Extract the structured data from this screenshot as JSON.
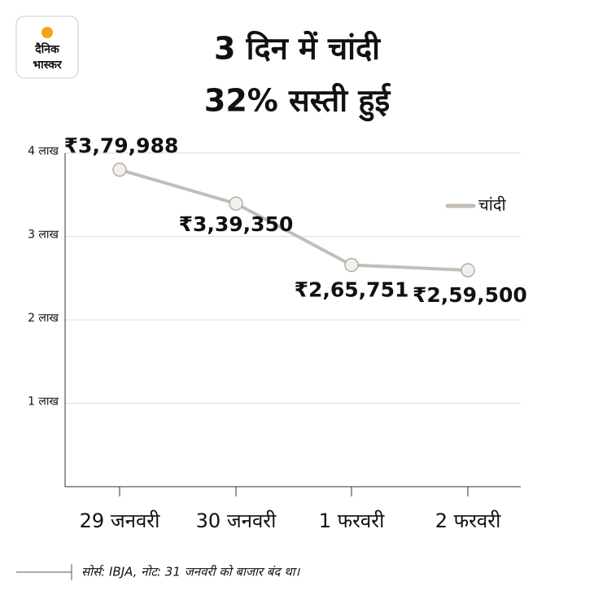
{
  "logo": {
    "line1": "दैनिक",
    "line2": "भास्कर"
  },
  "chart_data": {
    "type": "line",
    "title": [
      "3 दिन में चांदी",
      "32% सस्ती हुई"
    ],
    "categories": [
      "29 जनवरी",
      "30 जनवरी",
      "1 फरवरी",
      "2 फरवरी"
    ],
    "series": [
      {
        "name": "चांदी",
        "color": "#c4bdb5",
        "values": [
          379988,
          339350,
          265751,
          259500
        ],
        "value_labels": [
          "₹3,79,988",
          "₹3,39,350",
          "₹2,65,751",
          "₹2,59,500"
        ]
      }
    ],
    "ylim": [
      0,
      400000
    ],
    "yticks": [
      {
        "value": 100000,
        "label": "1 लाख"
      },
      {
        "value": 200000,
        "label": "2 लाख"
      },
      {
        "value": 300000,
        "label": "3 लाख"
      },
      {
        "value": 400000,
        "label": "4 लाख"
      }
    ],
    "grid": true,
    "legend": "top-right",
    "title_color": "#b7411c"
  },
  "source": "सोर्स: IBJA, नोट: 31 जनवरी को बाजार बंद था।"
}
